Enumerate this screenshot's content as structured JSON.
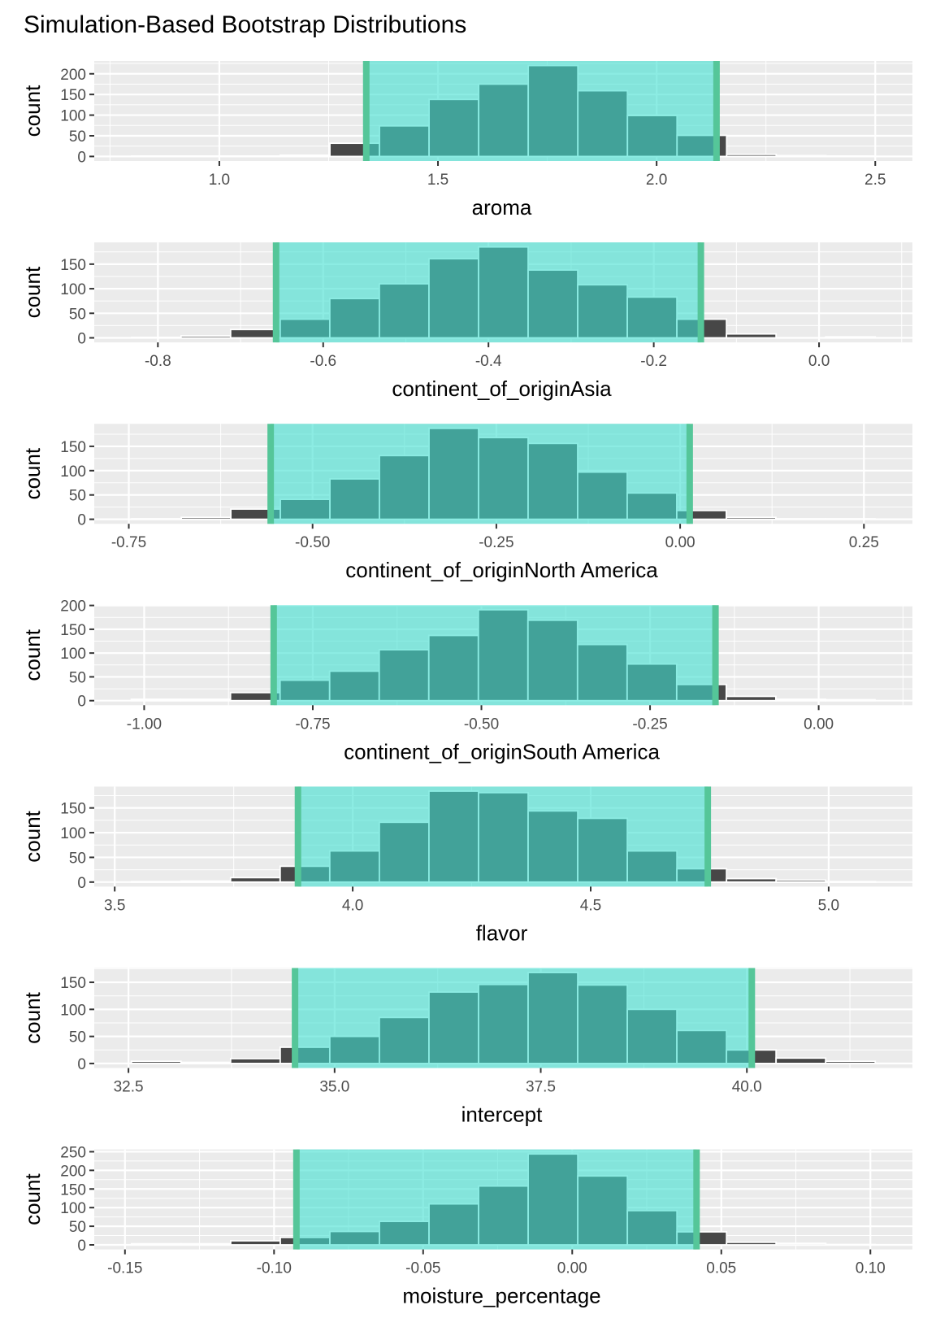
{
  "title": "Simulation-Based Bootstrap Distributions",
  "colors": {
    "panel_background": "#EBEBEB",
    "grid": "#FFFFFF",
    "bar_fill": "#474747",
    "bar_outline": "#FFFFFF",
    "ci_shade": "#40E0D0",
    "ci_line": "#55C699",
    "tick_text": "#4D4D4D"
  },
  "chart_data": [
    {
      "type": "bar",
      "subtype": "histogram",
      "xlabel": "aroma",
      "ylabel": "count",
      "bin_start": 0.7993,
      "bin_width": 0.1134,
      "counts": [
        1,
        1,
        1,
        3,
        32,
        74,
        138,
        175,
        220,
        159,
        99,
        51,
        5,
        2,
        1
      ],
      "ci": [
        1.336,
        2.137
      ],
      "xlim": [
        0.714,
        2.585
      ],
      "ylim": [
        -11,
        231
      ],
      "x_ticks": [
        {
          "value": 1.0,
          "label": "1.0"
        },
        {
          "value": 1.5,
          "label": "1.5"
        },
        {
          "value": 2.0,
          "label": "2.0"
        },
        {
          "value": 2.5,
          "label": "2.5"
        }
      ],
      "y_ticks": [
        {
          "value": 0,
          "label": "0"
        },
        {
          "value": 50,
          "label": "50"
        },
        {
          "value": 100,
          "label": "100"
        },
        {
          "value": 150,
          "label": "150"
        },
        {
          "value": 200,
          "label": "200"
        }
      ],
      "grid": true
    },
    {
      "type": "bar",
      "subtype": "histogram",
      "xlabel": "continent_of_originAsia",
      "ylabel": "count",
      "bin_start": -0.832,
      "bin_width": 0.06,
      "counts": [
        1,
        4,
        17,
        38,
        80,
        110,
        161,
        185,
        138,
        108,
        83,
        38,
        8,
        0,
        2
      ],
      "ci": [
        -0.657,
        -0.143
      ],
      "xlim": [
        -0.877,
        0.113
      ],
      "ylim": [
        -9.25,
        194.25
      ],
      "x_ticks": [
        {
          "value": -0.8,
          "label": "-0.8"
        },
        {
          "value": -0.6,
          "label": "-0.6"
        },
        {
          "value": -0.4,
          "label": "-0.4"
        },
        {
          "value": -0.2,
          "label": "-0.2"
        },
        {
          "value": 0.0,
          "label": "0.0"
        }
      ],
      "y_ticks": [
        {
          "value": 0,
          "label": "0"
        },
        {
          "value": 50,
          "label": "50"
        },
        {
          "value": 100,
          "label": "100"
        },
        {
          "value": 150,
          "label": "150"
        }
      ],
      "grid": true
    },
    {
      "type": "bar",
      "subtype": "histogram",
      "xlabel": "continent_of_originNorth America",
      "ylabel": "count",
      "bin_start": -0.746,
      "bin_width": 0.0674,
      "counts": [
        1,
        4,
        21,
        41,
        83,
        131,
        187,
        168,
        156,
        97,
        54,
        18,
        4,
        1,
        1
      ],
      "ci": [
        -0.557,
        0.013
      ],
      "xlim": [
        -0.797,
        0.316
      ],
      "ylim": [
        -9.35,
        196.35
      ],
      "x_ticks": [
        {
          "value": -0.75,
          "label": "-0.75"
        },
        {
          "value": -0.5,
          "label": "-0.50"
        },
        {
          "value": -0.25,
          "label": "-0.25"
        },
        {
          "value": 0.0,
          "label": "0.00"
        },
        {
          "value": 0.25,
          "label": "0.25"
        }
      ],
      "y_ticks": [
        {
          "value": 0,
          "label": "0"
        },
        {
          "value": 50,
          "label": "50"
        },
        {
          "value": 100,
          "label": "100"
        },
        {
          "value": 150,
          "label": "150"
        }
      ],
      "grid": true
    },
    {
      "type": "bar",
      "subtype": "histogram",
      "xlabel": "continent_of_originSouth America",
      "ylabel": "count",
      "bin_start": -1.019,
      "bin_width": 0.0735,
      "counts": [
        3,
        3,
        17,
        43,
        62,
        107,
        137,
        191,
        169,
        118,
        77,
        34,
        9,
        3,
        2
      ],
      "ci": [
        -0.808,
        -0.153
      ],
      "xlim": [
        -1.074,
        0.139
      ],
      "ylim": [
        -9.55,
        200.55
      ],
      "x_ticks": [
        {
          "value": -1.0,
          "label": "-1.00"
        },
        {
          "value": -0.75,
          "label": "-0.75"
        },
        {
          "value": -0.5,
          "label": "-0.50"
        },
        {
          "value": -0.25,
          "label": "-0.25"
        },
        {
          "value": 0.0,
          "label": "0.00"
        }
      ],
      "y_ticks": [
        {
          "value": 0,
          "label": "0"
        },
        {
          "value": 50,
          "label": "50"
        },
        {
          "value": 100,
          "label": "100"
        },
        {
          "value": 150,
          "label": "150"
        },
        {
          "value": 200,
          "label": "200"
        }
      ],
      "grid": true
    },
    {
      "type": "bar",
      "subtype": "histogram",
      "xlabel": "flavor",
      "ylabel": "count",
      "bin_start": 3.535,
      "bin_width": 0.1042,
      "counts": [
        1,
        2,
        9,
        32,
        63,
        121,
        184,
        181,
        144,
        129,
        63,
        27,
        7,
        4,
        1
      ],
      "ci": [
        3.885,
        4.746
      ],
      "xlim": [
        3.457,
        5.176
      ],
      "ylim": [
        -9.2,
        193.2
      ],
      "x_ticks": [
        {
          "value": 3.5,
          "label": "3.5"
        },
        {
          "value": 4.0,
          "label": "4.0"
        },
        {
          "value": 4.5,
          "label": "4.5"
        },
        {
          "value": 5.0,
          "label": "5.0"
        }
      ],
      "y_ticks": [
        {
          "value": 0,
          "label": "0"
        },
        {
          "value": 50,
          "label": "50"
        },
        {
          "value": 100,
          "label": "100"
        },
        {
          "value": 150,
          "label": "150"
        }
      ],
      "grid": true
    },
    {
      "type": "bar",
      "subtype": "histogram",
      "xlabel": "intercept",
      "ylabel": "count",
      "bin_start": 32.536,
      "bin_width": 0.6014,
      "counts": [
        4,
        2,
        9,
        30,
        50,
        85,
        132,
        146,
        168,
        145,
        100,
        61,
        25,
        10,
        4
      ],
      "ci": [
        34.52,
        40.06
      ],
      "xlim": [
        32.085,
        42.008
      ],
      "ylim": [
        -8.4,
        176.4
      ],
      "x_ticks": [
        {
          "value": 32.5,
          "label": "32.5"
        },
        {
          "value": 35.0,
          "label": "35.0"
        },
        {
          "value": 37.5,
          "label": "37.5"
        },
        {
          "value": 40.0,
          "label": "40.0"
        }
      ],
      "y_ticks": [
        {
          "value": 0,
          "label": "0"
        },
        {
          "value": 50,
          "label": "50"
        },
        {
          "value": 100,
          "label": "100"
        },
        {
          "value": 150,
          "label": "150"
        }
      ],
      "grid": true
    },
    {
      "type": "bar",
      "subtype": "histogram",
      "xlabel": "moisture_percentage",
      "ylabel": "count",
      "bin_start": -0.1478,
      "bin_width": 0.01663,
      "counts": [
        3,
        3,
        11,
        20,
        36,
        63,
        110,
        158,
        244,
        185,
        92,
        35,
        7,
        4,
        1
      ],
      "ci": [
        -0.0925,
        0.0417
      ],
      "xlim": [
        -0.1603,
        0.1141
      ],
      "ylim": [
        -12.2,
        256.2
      ],
      "x_ticks": [
        {
          "value": -0.15,
          "label": "-0.15"
        },
        {
          "value": -0.1,
          "label": "-0.10"
        },
        {
          "value": -0.05,
          "label": "-0.05"
        },
        {
          "value": 0.0,
          "label": "0.00"
        },
        {
          "value": 0.05,
          "label": "0.05"
        },
        {
          "value": 0.1,
          "label": "0.10"
        }
      ],
      "y_ticks": [
        {
          "value": 0,
          "label": "0"
        },
        {
          "value": 50,
          "label": "50"
        },
        {
          "value": 100,
          "label": "100"
        },
        {
          "value": 150,
          "label": "150"
        },
        {
          "value": 200,
          "label": "200"
        },
        {
          "value": 250,
          "label": "250"
        }
      ],
      "grid": true
    }
  ]
}
